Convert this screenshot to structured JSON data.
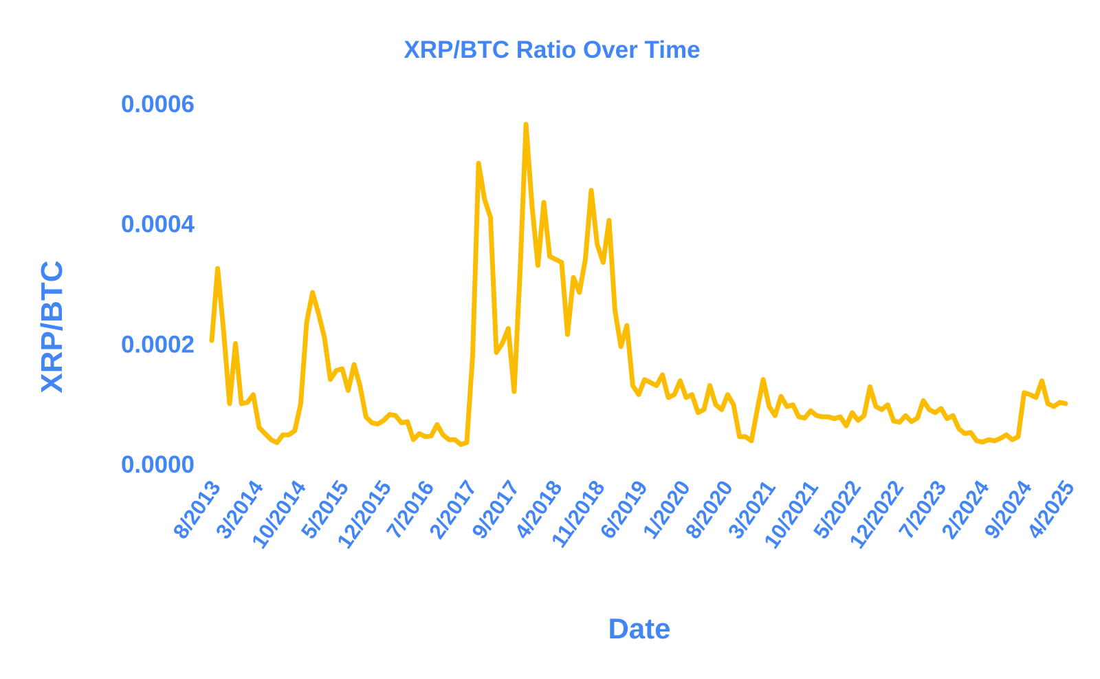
{
  "chart_data": {
    "type": "line",
    "title": "XRP/BTC Ratio Over Time",
    "xlabel": "Date",
    "ylabel": "XRP/BTC",
    "ylim": [
      0,
      0.0006
    ],
    "yticks": [
      "0.0000",
      "0.0002",
      "0.0004",
      "0.0006"
    ],
    "ytick_values": [
      0,
      0.0002,
      0.0004,
      0.0006
    ],
    "xticks": [
      "8/2013",
      "3/2014",
      "10/2014",
      "5/2015",
      "12/2015",
      "7/2016",
      "2/2017",
      "9/2017",
      "4/2018",
      "11/2018",
      "6/2019",
      "1/2020",
      "8/2020",
      "3/2021",
      "10/2021",
      "5/2022",
      "12/2022",
      "7/2023",
      "2/2024",
      "9/2024",
      "4/2025"
    ],
    "grid": false,
    "legend": "none",
    "colors": {
      "line": "#FBBC04",
      "text": "#4285F4"
    },
    "series": [
      {
        "values": [
          0.000205,
          0.000325,
          0.00022,
          0.0001,
          0.0002,
          0.0001,
          0.000102,
          0.000115,
          6e-05,
          5e-05,
          4e-05,
          3.5e-05,
          4.8e-05,
          4.8e-05,
          5.5e-05,
          0.0001,
          0.000235,
          0.000285,
          0.00025,
          0.00021,
          0.00014,
          0.000155,
          0.000158,
          0.000122,
          0.000165,
          0.00013,
          7.8e-05,
          6.8e-05,
          6.6e-05,
          7.2e-05,
          8.2e-05,
          8e-05,
          6.8e-05,
          7e-05,
          4e-05,
          5e-05,
          4.5e-05,
          4.6e-05,
          6.5e-05,
          4.8e-05,
          4e-05,
          4e-05,
          3.2e-05,
          3.5e-05,
          0.00018,
          0.0005,
          0.00044,
          0.00041,
          0.000185,
          0.0002,
          0.000225,
          0.00012,
          0.00032,
          0.000565,
          0.00043,
          0.00033,
          0.000435,
          0.000345,
          0.00034,
          0.000335,
          0.000215,
          0.00031,
          0.000285,
          0.00034,
          0.000455,
          0.000365,
          0.000335,
          0.000405,
          0.000255,
          0.000195,
          0.00023,
          0.00013,
          0.000115,
          0.00014,
          0.000135,
          0.00013,
          0.000148,
          0.00011,
          0.000115,
          0.000138,
          0.00011,
          0.000115,
          8.5e-05,
          9e-05,
          0.00013,
          9.8e-05,
          9e-05,
          0.000115,
          9.8e-05,
          4.5e-05,
          4.5e-05,
          3.8e-05,
          9e-05,
          0.00014,
          9.5e-05,
          8e-05,
          0.000112,
          9.5e-05,
          9.8e-05,
          7.8e-05,
          7.6e-05,
          8.8e-05,
          8e-05,
          7.8e-05,
          7.8e-05,
          7.5e-05,
          7.8e-05,
          6.3e-05,
          8.5e-05,
          7.2e-05,
          8e-05,
          0.000128,
          9.5e-05,
          9e-05,
          9.8e-05,
          7.1e-05,
          6.9e-05,
          8e-05,
          7e-05,
          7.6e-05,
          0.000105,
          9e-05,
          8.5e-05,
          9.2e-05,
          7.5e-05,
          8e-05,
          5.8e-05,
          5e-05,
          5.2e-05,
          3.8e-05,
          3.6e-05,
          4e-05,
          3.8e-05,
          4.2e-05,
          4.8e-05,
          4e-05,
          4.5e-05,
          0.000118,
          0.000115,
          0.00011,
          0.000138,
          0.0001,
          9.5e-05,
          0.000102,
          0.0001
        ]
      }
    ]
  }
}
